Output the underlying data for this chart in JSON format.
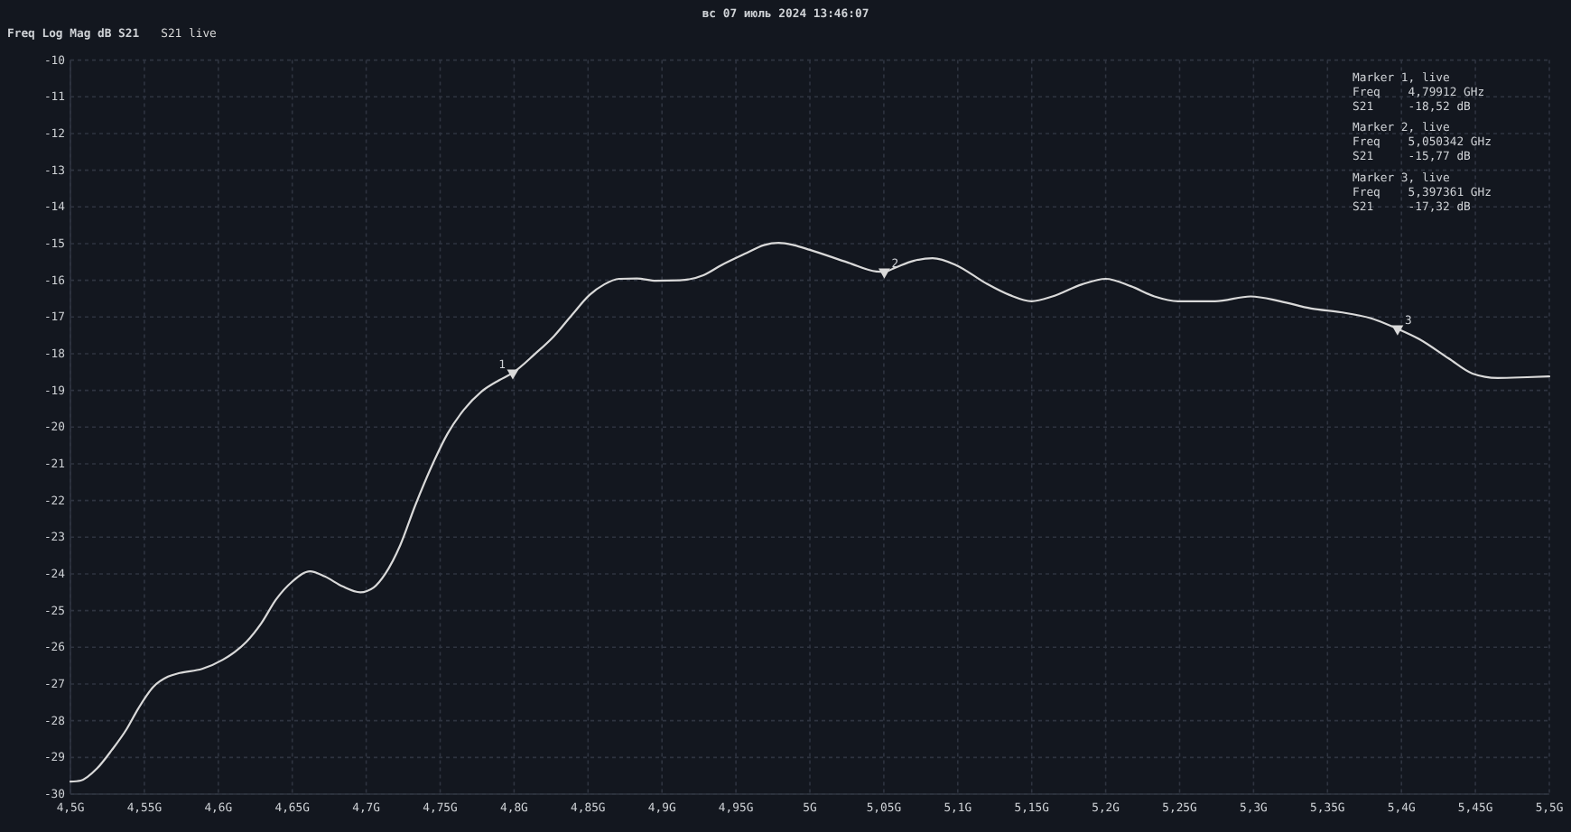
{
  "chart_data": {
    "type": "line",
    "title": "вс 07 июль 2024 13:46:07",
    "subtitle": "Freq Log Mag dB S21",
    "xlim": [
      4.5,
      5.5
    ],
    "xticks": [
      {
        "value": 4.5,
        "label": "4,5G"
      },
      {
        "value": 4.55,
        "label": "4,55G"
      },
      {
        "value": 4.6,
        "label": "4,6G"
      },
      {
        "value": 4.65,
        "label": "4,65G"
      },
      {
        "value": 4.7,
        "label": "4,7G"
      },
      {
        "value": 4.75,
        "label": "4,75G"
      },
      {
        "value": 4.8,
        "label": "4,8G"
      },
      {
        "value": 4.85,
        "label": "4,85G"
      },
      {
        "value": 4.9,
        "label": "4,9G"
      },
      {
        "value": 4.95,
        "label": "4,95G"
      },
      {
        "value": 5.0,
        "label": "5G"
      },
      {
        "value": 5.05,
        "label": "5,05G"
      },
      {
        "value": 5.1,
        "label": "5,1G"
      },
      {
        "value": 5.15,
        "label": "5,15G"
      },
      {
        "value": 5.2,
        "label": "5,2G"
      },
      {
        "value": 5.25,
        "label": "5,25G"
      },
      {
        "value": 5.3,
        "label": "5,3G"
      },
      {
        "value": 5.35,
        "label": "5,35G"
      },
      {
        "value": 5.4,
        "label": "5,4G"
      },
      {
        "value": 5.45,
        "label": "5,45G"
      },
      {
        "value": 5.5,
        "label": "5,5G"
      }
    ],
    "ylim": [
      -30,
      -10
    ],
    "yticks": [
      -30,
      -29,
      -28,
      -27,
      -26,
      -25,
      -24,
      -23,
      -22,
      -21,
      -20,
      -19,
      -18,
      -17,
      -16,
      -15,
      -14,
      -13,
      -12,
      -11,
      -10
    ],
    "grid": true,
    "legend": "top left",
    "series": [
      {
        "name": "S21 live",
        "color": "#d9d9d9",
        "x": [
          4.5,
          4.507,
          4.518,
          4.528,
          4.538,
          4.546,
          4.556,
          4.566,
          4.574,
          4.589,
          4.603,
          4.611,
          4.619,
          4.629,
          4.639,
          4.65,
          4.662,
          4.672,
          4.684,
          4.696,
          4.705,
          4.713,
          4.723,
          4.733,
          4.745,
          4.755,
          4.766,
          4.778,
          4.79,
          4.79912,
          4.814,
          4.827,
          4.839,
          4.851,
          4.861,
          4.871,
          4.883,
          4.896,
          4.912,
          4.928,
          4.94,
          4.957,
          4.969,
          4.979,
          4.989,
          5.0,
          5.026,
          5.045,
          5.050342,
          5.058,
          5.07,
          5.083,
          5.099,
          5.119,
          5.135,
          5.15,
          5.164,
          5.184,
          5.2,
          5.217,
          5.233,
          5.249,
          5.274,
          5.298,
          5.318,
          5.339,
          5.359,
          5.379,
          5.397361,
          5.412,
          5.432,
          5.448,
          5.465,
          5.485,
          5.5
        ],
        "values": [
          -29.66,
          -29.63,
          -29.3,
          -28.8,
          -28.23,
          -27.66,
          -27.08,
          -26.8,
          -26.7,
          -26.59,
          -26.34,
          -26.13,
          -25.85,
          -25.35,
          -24.7,
          -24.21,
          -23.93,
          -24.07,
          -24.34,
          -24.5,
          -24.37,
          -23.99,
          -23.22,
          -22.15,
          -21.0,
          -20.18,
          -19.53,
          -19.03,
          -18.72,
          -18.52,
          -18.01,
          -17.52,
          -16.95,
          -16.4,
          -16.11,
          -15.96,
          -15.95,
          -16.01,
          -16.0,
          -15.86,
          -15.59,
          -15.26,
          -15.04,
          -14.98,
          -15.04,
          -15.17,
          -15.52,
          -15.76,
          -15.77,
          -15.65,
          -15.47,
          -15.4,
          -15.59,
          -16.08,
          -16.4,
          -16.57,
          -16.44,
          -16.11,
          -15.96,
          -16.16,
          -16.44,
          -16.57,
          -16.57,
          -16.44,
          -16.57,
          -16.77,
          -16.87,
          -17.03,
          -17.32,
          -17.6,
          -18.13,
          -18.54,
          -18.66,
          -18.64,
          -18.62
        ]
      },
      {
        "type": "scatter",
        "color": "#d9d9d9",
        "marker": "triangle",
        "x": [
          4.79912,
          5.050342,
          5.397361
        ],
        "values": [
          -18.52,
          -15.77,
          -17.32
        ]
      }
    ],
    "annotations": [
      {
        "text": "1",
        "x": 4.79912,
        "y": -18.52
      },
      {
        "text": "2",
        "x": 5.050342,
        "y": -15.77
      },
      {
        "text": "3",
        "x": 5.397361,
        "y": -17.32
      },
      "Marker 1, live\nFreq    4,79912 GHz\nS21     -18,52 dB",
      "Marker 2, live\nFreq    5,050342 GHz\nS21     -15,77 dB",
      "Marker 3, live\nFreq    5,397361 GHz\nS21     -17,32 dB"
    ]
  }
}
